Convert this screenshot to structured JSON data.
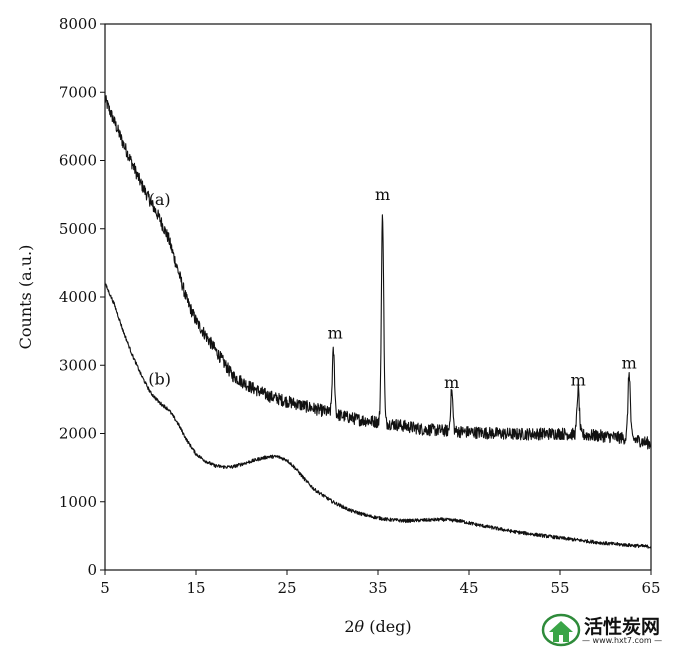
{
  "chart_data": {
    "type": "line",
    "xlabel_prefix": "2",
    "xlabel_theta": "θ",
    "xlabel_suffix": " (deg)",
    "ylabel": "Counts (a.u.)",
    "xlim": [
      5,
      65
    ],
    "ylim": [
      0,
      8000
    ],
    "xticks": [
      5,
      15,
      25,
      35,
      45,
      55,
      65
    ],
    "yticks": [
      0,
      1000,
      2000,
      3000,
      4000,
      5000,
      6000,
      7000,
      8000
    ],
    "series": [
      {
        "name": "(a)",
        "label_at": [
          11,
          5350
        ],
        "baseline": [
          [
            5,
            6900
          ],
          [
            7,
            6250
          ],
          [
            9,
            5650
          ],
          [
            11,
            5150
          ],
          [
            12,
            4850
          ],
          [
            13,
            4400
          ],
          [
            14,
            3950
          ],
          [
            15,
            3650
          ],
          [
            17,
            3250
          ],
          [
            19,
            2850
          ],
          [
            21,
            2680
          ],
          [
            23,
            2550
          ],
          [
            25,
            2470
          ],
          [
            27,
            2400
          ],
          [
            29,
            2330
          ],
          [
            31,
            2260
          ],
          [
            33,
            2200
          ],
          [
            35,
            2170
          ],
          [
            37,
            2130
          ],
          [
            40,
            2060
          ],
          [
            45,
            2020
          ],
          [
            50,
            1990
          ],
          [
            55,
            2000
          ],
          [
            60,
            1960
          ],
          [
            63,
            1920
          ],
          [
            65,
            1850
          ]
        ],
        "peaks": [
          [
            30.1,
            3200
          ],
          [
            35.5,
            5200
          ],
          [
            43.1,
            2620
          ],
          [
            57.0,
            2650
          ],
          [
            62.6,
            2900
          ]
        ],
        "noise": 90
      },
      {
        "name": "(b)",
        "label_at": [
          11,
          2720
        ],
        "baseline": [
          [
            5,
            4200
          ],
          [
            6,
            3900
          ],
          [
            7,
            3500
          ],
          [
            8,
            3150
          ],
          [
            9,
            2850
          ],
          [
            10,
            2600
          ],
          [
            11,
            2450
          ],
          [
            12,
            2350
          ],
          [
            13,
            2150
          ],
          [
            14,
            1900
          ],
          [
            15,
            1700
          ],
          [
            16,
            1600
          ],
          [
            17,
            1530
          ],
          [
            18,
            1510
          ],
          [
            19,
            1510
          ],
          [
            20,
            1550
          ],
          [
            21,
            1590
          ],
          [
            22,
            1630
          ],
          [
            23,
            1660
          ],
          [
            24,
            1660
          ],
          [
            25,
            1610
          ],
          [
            26,
            1480
          ],
          [
            27,
            1320
          ],
          [
            28,
            1180
          ],
          [
            30,
            1000
          ],
          [
            32,
            870
          ],
          [
            34,
            790
          ],
          [
            36,
            740
          ],
          [
            38,
            720
          ],
          [
            40,
            730
          ],
          [
            42,
            740
          ],
          [
            44,
            720
          ],
          [
            46,
            660
          ],
          [
            50,
            560
          ],
          [
            55,
            470
          ],
          [
            60,
            390
          ],
          [
            65,
            340
          ]
        ],
        "noise": 25
      }
    ],
    "annotations": [
      {
        "text": "m",
        "x": 30.3,
        "y": 3390
      },
      {
        "text": "m",
        "x": 35.5,
        "y": 5420
      },
      {
        "text": "m",
        "x": 43.1,
        "y": 2670
      },
      {
        "text": "m",
        "x": 57.0,
        "y": 2700
      },
      {
        "text": "m",
        "x": 62.6,
        "y": 2950
      }
    ]
  },
  "watermark": {
    "text": "活性炭网",
    "url": "— www.hxt7.com —"
  }
}
